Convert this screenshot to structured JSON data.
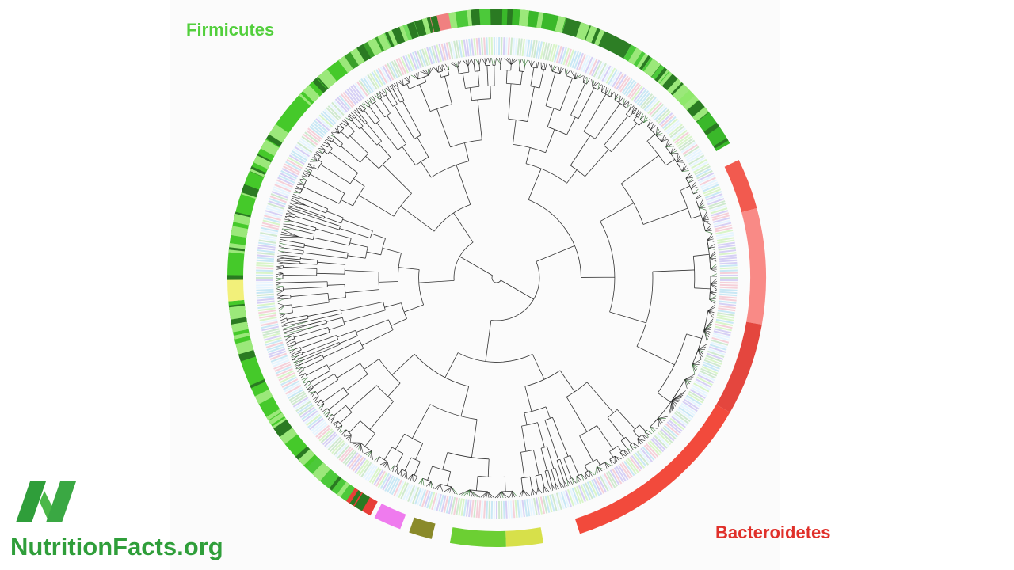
{
  "labels": {
    "firmicutes": "Firmicutes",
    "bacteroidetes": "Bacteroidetes"
  },
  "logo": {
    "text": "NutritionFacts.org"
  }
}
